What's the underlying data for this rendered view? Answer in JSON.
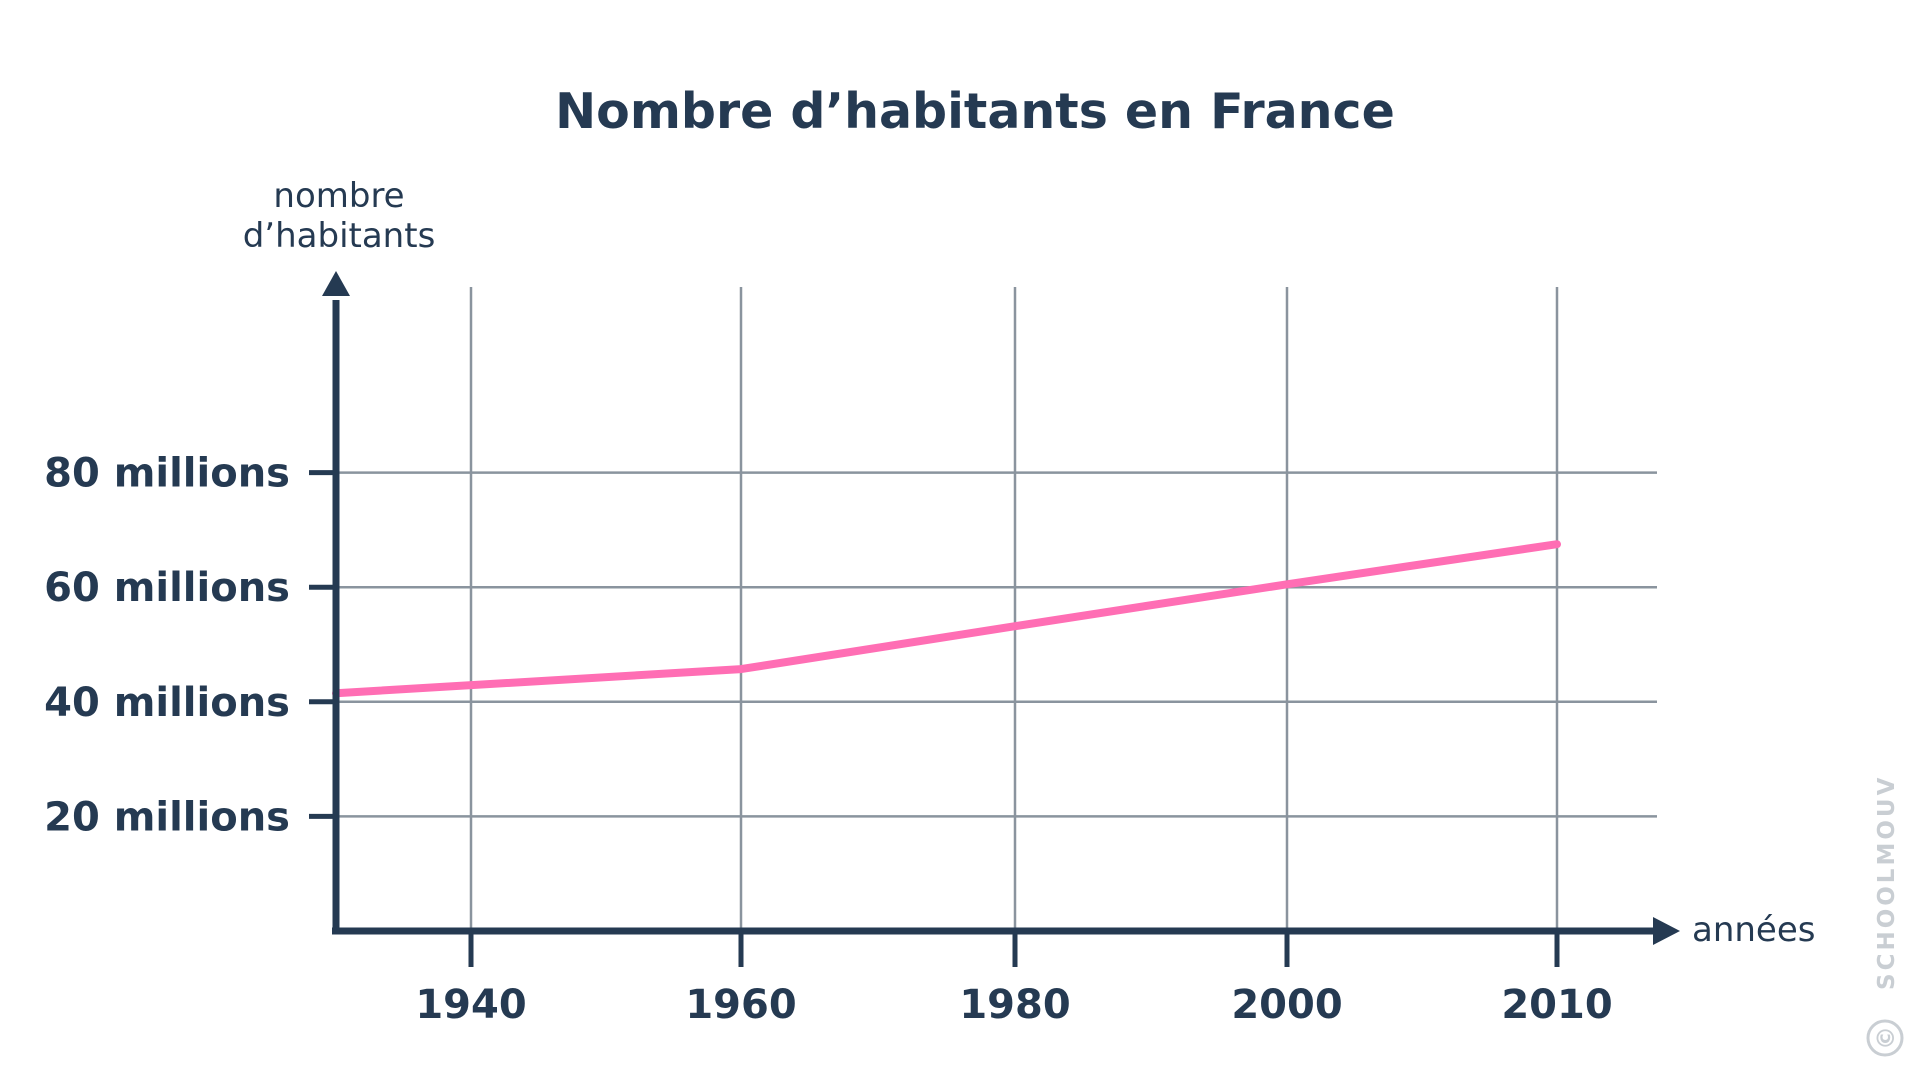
{
  "chart_data": {
    "type": "line",
    "title": "Nombre d’habitants en France",
    "ylabel_lines": [
      "nombre",
      "d’habitants"
    ],
    "xlabel": "années",
    "x_ticks": [
      1940,
      1960,
      1980,
      2000,
      2010
    ],
    "x_tick_labels": [
      "1940",
      "1960",
      "1980",
      "2000",
      "2010"
    ],
    "y_ticks": [
      20,
      40,
      60,
      80
    ],
    "y_tick_labels": [
      "20 millions",
      "40 millions",
      "60 millions",
      "80 millions"
    ],
    "y_unit": "millions",
    "grid": true,
    "series": [
      {
        "color": "#ff6eb4",
        "points": [
          {
            "x": 1930,
            "y": 41.5
          },
          {
            "x": 1960,
            "y": 45.7
          },
          {
            "x": 1980,
            "y": 53.2
          },
          {
            "x": 2000,
            "y": 60.5
          },
          {
            "x": 2010,
            "y": 67.5
          }
        ]
      }
    ]
  },
  "colors": {
    "text": "#253a52",
    "axis": "#253a52",
    "grid": "#8a949e",
    "series": "#ff6eb4",
    "watermark": "#c9ced3"
  },
  "watermark": "SCHOOLMOUV",
  "watermark_symbol": "©"
}
